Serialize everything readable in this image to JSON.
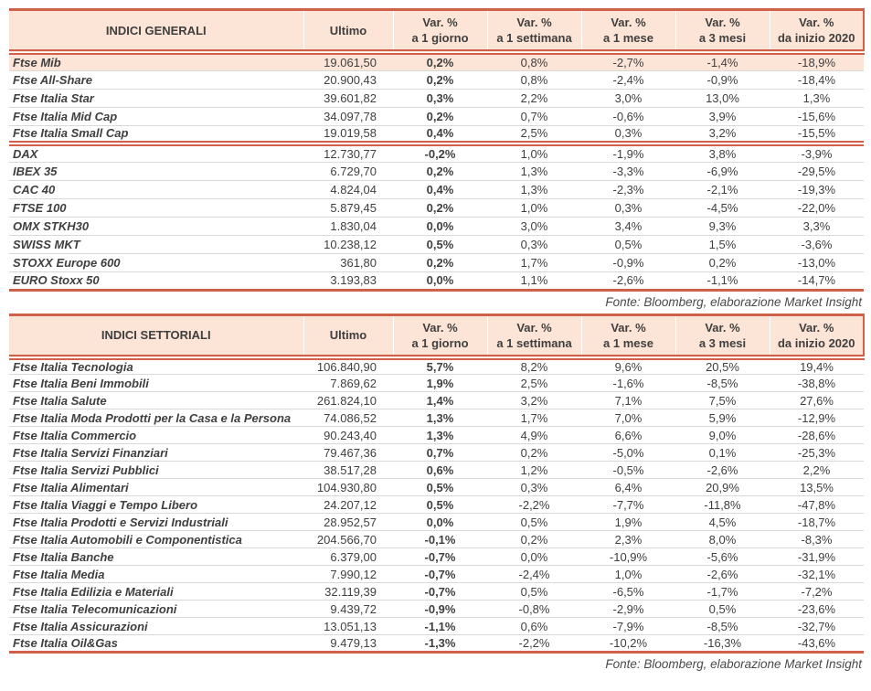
{
  "colors": {
    "accent": "#d0604a",
    "header_bg": "#fce4d6",
    "row_separator": "#d9d9d9",
    "text": "#3f3f3f",
    "source_text": "#4a4a4a"
  },
  "table1": {
    "title": "INDICI GENERALI",
    "header": {
      "ultimo": "Ultimo",
      "var_label": "Var. %",
      "periods": [
        "a 1 giorno",
        "a 1 settimana",
        "a 1 mese",
        "a 3 mesi",
        "da inizio 2020"
      ]
    },
    "groups": [
      {
        "rows": [
          {
            "name": "Ftse Mib",
            "ultimo": "19.061,50",
            "values": [
              "0,2%",
              "0,8%",
              "-2,7%",
              "-1,4%",
              "-18,9%"
            ],
            "highlight": true
          },
          {
            "name": "Ftse All-Share",
            "ultimo": "20.900,43",
            "values": [
              "0,2%",
              "0,8%",
              "-2,4%",
              "-0,9%",
              "-18,4%"
            ]
          },
          {
            "name": "Ftse Italia Star",
            "ultimo": "39.601,82",
            "values": [
              "0,3%",
              "2,2%",
              "3,0%",
              "13,0%",
              "1,3%"
            ]
          },
          {
            "name": "Ftse Italia Mid Cap",
            "ultimo": "34.097,78",
            "values": [
              "0,2%",
              "0,7%",
              "-0,6%",
              "3,9%",
              "-15,6%"
            ]
          },
          {
            "name": "Ftse Italia Small Cap",
            "ultimo": "19.019,58",
            "values": [
              "0,4%",
              "2,5%",
              "0,3%",
              "3,2%",
              "-15,5%"
            ]
          }
        ]
      },
      {
        "rows": [
          {
            "name": "DAX",
            "ultimo": "12.730,77",
            "values": [
              "-0,2%",
              "1,0%",
              "-1,9%",
              "3,8%",
              "-3,9%"
            ]
          },
          {
            "name": "IBEX 35",
            "ultimo": "6.729,70",
            "values": [
              "0,2%",
              "1,3%",
              "-3,3%",
              "-6,9%",
              "-29,5%"
            ]
          },
          {
            "name": "CAC 40",
            "ultimo": "4.824,04",
            "values": [
              "0,4%",
              "1,3%",
              "-2,3%",
              "-2,1%",
              "-19,3%"
            ]
          },
          {
            "name": "FTSE 100",
            "ultimo": "5.879,45",
            "values": [
              "0,2%",
              "1,0%",
              "0,3%",
              "-4,5%",
              "-22,0%"
            ]
          },
          {
            "name": "OMX STKH30",
            "ultimo": "1.830,04",
            "values": [
              "0,0%",
              "3,0%",
              "3,4%",
              "9,3%",
              "3,3%"
            ]
          },
          {
            "name": "SWISS MKT",
            "ultimo": "10.238,12",
            "values": [
              "0,5%",
              "0,3%",
              "0,5%",
              "1,5%",
              "-3,6%"
            ]
          },
          {
            "name": "STOXX Europe 600",
            "ultimo": "361,80",
            "values": [
              "0,2%",
              "1,7%",
              "-0,9%",
              "0,2%",
              "-13,0%"
            ]
          },
          {
            "name": "EURO Stoxx 50",
            "ultimo": "3.193,83",
            "values": [
              "0,0%",
              "1,1%",
              "-2,6%",
              "-1,1%",
              "-14,7%"
            ]
          }
        ]
      }
    ],
    "fonte": "Fonte: Bloomberg, elaborazione Market Insight"
  },
  "table2": {
    "title": "INDICI SETTORIALI",
    "header": {
      "ultimo": "Ultimo",
      "var_label": "Var. %",
      "periods": [
        "a 1 giorno",
        "a 1 settimana",
        "a 1 mese",
        "a 3 mesi",
        "da inizio 2020"
      ]
    },
    "groups": [
      {
        "rows": [
          {
            "name": "Ftse Italia Tecnologia",
            "ultimo": "106.840,90",
            "values": [
              "5,7%",
              "8,2%",
              "9,6%",
              "20,5%",
              "19,4%"
            ]
          },
          {
            "name": "Ftse Italia Beni Immobili",
            "ultimo": "7.869,62",
            "values": [
              "1,9%",
              "2,5%",
              "-1,6%",
              "-8,5%",
              "-38,8%"
            ]
          },
          {
            "name": "Ftse Italia Salute",
            "ultimo": "261.824,10",
            "values": [
              "1,4%",
              "3,2%",
              "7,1%",
              "7,5%",
              "27,6%"
            ]
          },
          {
            "name": "Ftse Italia Moda Prodotti per la Casa e la Persona",
            "ultimo": "74.086,52",
            "values": [
              "1,3%",
              "1,7%",
              "7,0%",
              "5,9%",
              "-12,9%"
            ]
          },
          {
            "name": "Ftse Italia Commercio",
            "ultimo": "90.243,40",
            "values": [
              "1,3%",
              "4,9%",
              "6,6%",
              "9,0%",
              "-28,6%"
            ]
          },
          {
            "name": "Ftse Italia Servizi Finanziari",
            "ultimo": "79.467,36",
            "values": [
              "0,7%",
              "0,2%",
              "-5,0%",
              "0,1%",
              "-25,3%"
            ]
          },
          {
            "name": "Ftse Italia Servizi Pubblici",
            "ultimo": "38.517,28",
            "values": [
              "0,6%",
              "1,2%",
              "-0,5%",
              "-2,6%",
              "2,2%"
            ]
          },
          {
            "name": "Ftse Italia Alimentari",
            "ultimo": "104.930,80",
            "values": [
              "0,5%",
              "0,3%",
              "6,4%",
              "20,9%",
              "13,5%"
            ]
          },
          {
            "name": "Ftse Italia Viaggi e Tempo Libero",
            "ultimo": "24.207,12",
            "values": [
              "0,5%",
              "-2,2%",
              "-7,7%",
              "-11,8%",
              "-47,8%"
            ]
          },
          {
            "name": "Ftse Italia Prodotti e Servizi Industriali",
            "ultimo": "28.952,57",
            "values": [
              "0,0%",
              "0,5%",
              "1,9%",
              "4,5%",
              "-18,7%"
            ]
          },
          {
            "name": "Ftse Italia Automobili e Componentistica",
            "ultimo": "204.566,70",
            "values": [
              "-0,1%",
              "0,2%",
              "2,3%",
              "8,0%",
              "-8,3%"
            ]
          },
          {
            "name": "Ftse Italia Banche",
            "ultimo": "6.379,00",
            "values": [
              "-0,7%",
              "0,0%",
              "-10,9%",
              "-5,6%",
              "-31,9%"
            ]
          },
          {
            "name": "Ftse Italia Media",
            "ultimo": "7.990,12",
            "values": [
              "-0,7%",
              "-2,4%",
              "1,0%",
              "-2,6%",
              "-32,1%"
            ]
          },
          {
            "name": "Ftse Italia Edilizia e Materiali",
            "ultimo": "32.119,39",
            "values": [
              "-0,7%",
              "0,5%",
              "-6,5%",
              "-1,7%",
              "-7,2%"
            ]
          },
          {
            "name": "Ftse Italia Telecomunicazioni",
            "ultimo": "9.439,72",
            "values": [
              "-0,9%",
              "-0,8%",
              "-2,9%",
              "0,5%",
              "-23,6%"
            ]
          },
          {
            "name": "Ftse Italia Assicurazioni",
            "ultimo": "13.051,13",
            "values": [
              "-1,1%",
              "0,6%",
              "-7,9%",
              "-8,5%",
              "-32,7%"
            ]
          },
          {
            "name": "Ftse Italia Oil&Gas",
            "ultimo": "9.479,13",
            "values": [
              "-1,3%",
              "-2,2%",
              "-10,2%",
              "-16,3%",
              "-43,6%"
            ]
          }
        ]
      }
    ],
    "fonte": "Fonte: Bloomberg, elaborazione Market Insight"
  }
}
